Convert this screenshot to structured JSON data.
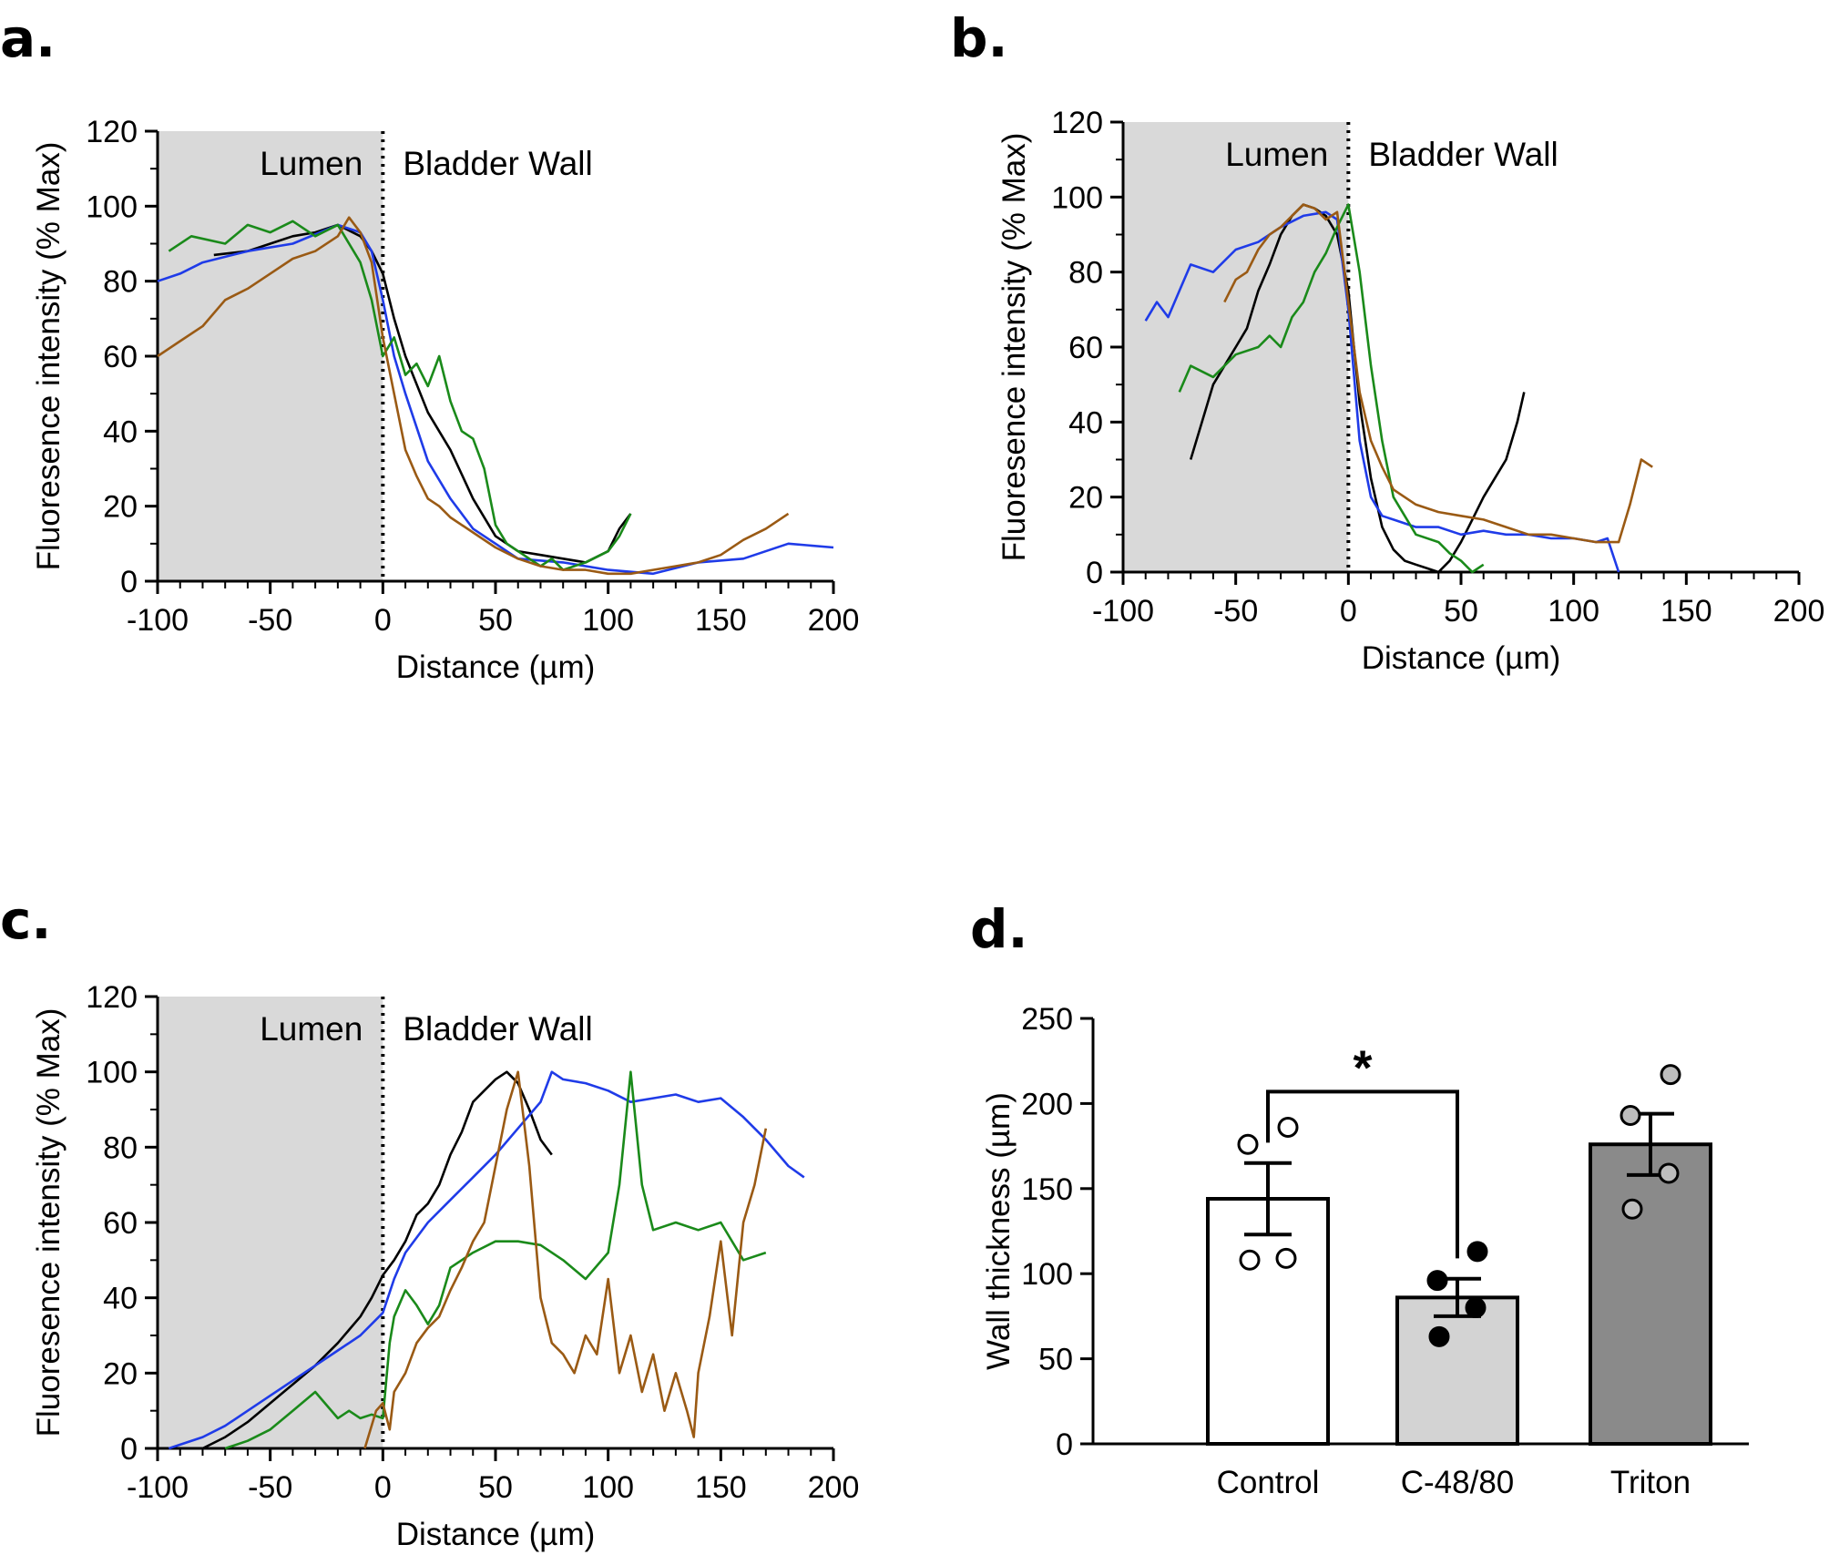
{
  "figure": {
    "colors": {
      "black": "#000000",
      "blue": "#1f3be8",
      "green": "#1a8a1a",
      "brown": "#9a5a14",
      "shade": "#d9d9d9",
      "white_bar": "#ffffff",
      "light_bar": "#d3d3d3",
      "dark_bar": "#8a8a8a"
    }
  },
  "chart_data": [
    {
      "id": "a",
      "panel_label": "a.",
      "type": "line",
      "xlabel": "Distance (µm)",
      "ylabel": "Fluoresence intensity (% Max)",
      "xlim": [
        -100,
        200
      ],
      "ylim": [
        0,
        120
      ],
      "xticks": [
        "-100",
        "-50",
        "0",
        "50",
        "100",
        "150",
        "200"
      ],
      "yticks": [
        "0",
        "20",
        "40",
        "60",
        "80",
        "100",
        "120"
      ],
      "region_left": "Lumen",
      "region_right": "Bladder Wall",
      "shade_range": [
        -100,
        0
      ],
      "series": [
        {
          "name": "black",
          "color": "#000000",
          "x": [
            -75,
            -60,
            -50,
            -40,
            -30,
            -20,
            -10,
            -5,
            0,
            5,
            10,
            20,
            30,
            40,
            50,
            60,
            70,
            80,
            90,
            100,
            105,
            110
          ],
          "y": [
            87,
            88,
            90,
            92,
            93,
            95,
            92,
            88,
            82,
            70,
            60,
            45,
            35,
            22,
            12,
            8,
            7,
            6,
            5,
            8,
            14,
            18
          ]
        },
        {
          "name": "blue",
          "color": "#1f3be8",
          "x": [
            -100,
            -90,
            -80,
            -60,
            -40,
            -20,
            -10,
            -5,
            0,
            5,
            10,
            20,
            30,
            40,
            50,
            60,
            80,
            100,
            120,
            140,
            160,
            180,
            200
          ],
          "y": [
            80,
            82,
            85,
            88,
            90,
            95,
            93,
            88,
            75,
            60,
            50,
            32,
            22,
            14,
            10,
            6,
            5,
            3,
            2,
            5,
            6,
            10,
            9
          ]
        },
        {
          "name": "green",
          "color": "#1a8a1a",
          "x": [
            -95,
            -85,
            -70,
            -60,
            -50,
            -40,
            -30,
            -20,
            -10,
            -5,
            0,
            5,
            10,
            15,
            20,
            25,
            30,
            35,
            40,
            45,
            50,
            55,
            60,
            65,
            70,
            75,
            80,
            90,
            100,
            105,
            110
          ],
          "y": [
            88,
            92,
            90,
            95,
            93,
            96,
            92,
            95,
            85,
            75,
            60,
            65,
            55,
            58,
            52,
            60,
            48,
            40,
            38,
            30,
            15,
            10,
            8,
            6,
            4,
            6,
            3,
            5,
            8,
            12,
            18
          ]
        },
        {
          "name": "brown",
          "color": "#9a5a14",
          "x": [
            -100,
            -90,
            -80,
            -70,
            -60,
            -50,
            -40,
            -30,
            -20,
            -15,
            -10,
            -5,
            0,
            5,
            10,
            15,
            20,
            25,
            30,
            40,
            50,
            60,
            70,
            80,
            90,
            100,
            110,
            120,
            130,
            140,
            150,
            160,
            170,
            180
          ],
          "y": [
            60,
            64,
            68,
            75,
            78,
            82,
            86,
            88,
            92,
            97,
            93,
            85,
            65,
            50,
            35,
            28,
            22,
            20,
            17,
            13,
            9,
            6,
            4,
            3,
            3,
            2,
            2,
            3,
            4,
            5,
            7,
            11,
            14,
            18
          ]
        }
      ]
    },
    {
      "id": "b",
      "panel_label": "b.",
      "type": "line",
      "xlabel": "Distance (µm)",
      "ylabel": "Fluoresence intensity (% Max)",
      "xlim": [
        -100,
        200
      ],
      "ylim": [
        0,
        120
      ],
      "xticks": [
        "-100",
        "-50",
        "0",
        "50",
        "100",
        "150",
        "200"
      ],
      "yticks": [
        "0",
        "20",
        "40",
        "60",
        "80",
        "100",
        "120"
      ],
      "region_left": "Lumen",
      "region_right": "Bladder Wall",
      "shade_range": [
        -100,
        0
      ],
      "series": [
        {
          "name": "black",
          "color": "#000000",
          "x": [
            -70,
            -65,
            -60,
            -55,
            -50,
            -45,
            -40,
            -35,
            -30,
            -25,
            -20,
            -15,
            -10,
            -5,
            0,
            5,
            10,
            15,
            20,
            25,
            30,
            35,
            40,
            45,
            50,
            55,
            60,
            65,
            70,
            75,
            78
          ],
          "y": [
            30,
            40,
            50,
            55,
            60,
            65,
            75,
            82,
            90,
            95,
            98,
            97,
            95,
            90,
            75,
            45,
            25,
            12,
            6,
            3,
            2,
            1,
            0,
            3,
            8,
            14,
            20,
            25,
            30,
            40,
            48
          ]
        },
        {
          "name": "blue",
          "color": "#1f3be8",
          "x": [
            -90,
            -85,
            -80,
            -75,
            -70,
            -60,
            -50,
            -40,
            -30,
            -20,
            -10,
            -5,
            0,
            5,
            10,
            15,
            20,
            30,
            40,
            50,
            60,
            70,
            80,
            90,
            100,
            110,
            115,
            120
          ],
          "y": [
            67,
            72,
            68,
            75,
            82,
            80,
            86,
            88,
            92,
            95,
            96,
            94,
            70,
            35,
            20,
            15,
            14,
            12,
            12,
            10,
            11,
            10,
            10,
            9,
            9,
            8,
            9,
            0
          ]
        },
        {
          "name": "green",
          "color": "#1a8a1a",
          "x": [
            -75,
            -70,
            -60,
            -50,
            -40,
            -35,
            -30,
            -25,
            -20,
            -15,
            -10,
            -5,
            0,
            5,
            10,
            15,
            20,
            25,
            30,
            40,
            45,
            50,
            55,
            60
          ],
          "y": [
            48,
            55,
            52,
            58,
            60,
            63,
            60,
            68,
            72,
            80,
            85,
            92,
            98,
            80,
            55,
            35,
            20,
            15,
            10,
            8,
            5,
            3,
            0,
            2
          ]
        },
        {
          "name": "brown",
          "color": "#9a5a14",
          "x": [
            -55,
            -50,
            -45,
            -40,
            -35,
            -30,
            -25,
            -20,
            -15,
            -10,
            -5,
            0,
            5,
            10,
            15,
            20,
            30,
            40,
            50,
            60,
            70,
            80,
            90,
            100,
            110,
            120,
            125,
            130,
            135
          ],
          "y": [
            72,
            78,
            80,
            86,
            90,
            92,
            95,
            98,
            97,
            94,
            96,
            72,
            48,
            35,
            28,
            22,
            18,
            16,
            15,
            14,
            12,
            10,
            10,
            9,
            8,
            8,
            18,
            30,
            28
          ]
        }
      ]
    },
    {
      "id": "c",
      "panel_label": "c.",
      "type": "line",
      "xlabel": "Distance (µm)",
      "ylabel": "Fluoresence intensity (% Max)",
      "xlim": [
        -100,
        200
      ],
      "ylim": [
        0,
        120
      ],
      "xticks": [
        "-100",
        "-50",
        "0",
        "50",
        "100",
        "150",
        "200"
      ],
      "yticks": [
        "0",
        "20",
        "40",
        "60",
        "80",
        "100",
        "120"
      ],
      "region_left": "Lumen",
      "region_right": "Bladder Wall",
      "shade_range": [
        -100,
        0
      ],
      "series": [
        {
          "name": "black",
          "color": "#000000",
          "x": [
            -80,
            -70,
            -60,
            -50,
            -40,
            -30,
            -20,
            -10,
            -5,
            0,
            5,
            10,
            15,
            20,
            25,
            30,
            35,
            40,
            45,
            50,
            55,
            60,
            65,
            70,
            75
          ],
          "y": [
            0,
            3,
            7,
            12,
            17,
            22,
            28,
            35,
            40,
            46,
            50,
            55,
            62,
            65,
            70,
            78,
            84,
            92,
            95,
            98,
            100,
            97,
            90,
            82,
            78
          ]
        },
        {
          "name": "blue",
          "color": "#1f3be8",
          "x": [
            -95,
            -90,
            -80,
            -70,
            -60,
            -50,
            -40,
            -30,
            -20,
            -10,
            -5,
            0,
            5,
            10,
            20,
            30,
            40,
            50,
            60,
            70,
            75,
            80,
            90,
            100,
            110,
            120,
            130,
            140,
            150,
            160,
            170,
            180,
            187
          ],
          "y": [
            0,
            1,
            3,
            6,
            10,
            14,
            18,
            22,
            26,
            30,
            33,
            36,
            45,
            52,
            60,
            66,
            72,
            78,
            85,
            92,
            100,
            98,
            97,
            95,
            92,
            93,
            94,
            92,
            93,
            88,
            82,
            75,
            72
          ]
        },
        {
          "name": "green",
          "color": "#1a8a1a",
          "x": [
            -70,
            -60,
            -50,
            -40,
            -30,
            -20,
            -15,
            -10,
            -5,
            0,
            3,
            5,
            10,
            15,
            20,
            25,
            30,
            40,
            50,
            60,
            70,
            80,
            90,
            100,
            105,
            110,
            115,
            120,
            130,
            140,
            150,
            160,
            170
          ],
          "y": [
            0,
            2,
            5,
            10,
            15,
            8,
            10,
            8,
            9,
            8,
            28,
            35,
            42,
            38,
            33,
            38,
            48,
            52,
            55,
            55,
            54,
            50,
            45,
            52,
            70,
            100,
            70,
            58,
            60,
            58,
            60,
            50,
            52
          ]
        },
        {
          "name": "brown",
          "color": "#9a5a14",
          "x": [
            -8,
            -3,
            0,
            3,
            5,
            10,
            15,
            20,
            25,
            30,
            35,
            40,
            45,
            50,
            55,
            60,
            65,
            70,
            75,
            80,
            85,
            90,
            95,
            100,
            105,
            110,
            115,
            120,
            125,
            130,
            135,
            138,
            140,
            145,
            150,
            155,
            160,
            165,
            170
          ],
          "y": [
            0,
            10,
            12,
            5,
            15,
            20,
            28,
            32,
            35,
            42,
            48,
            55,
            60,
            75,
            90,
            100,
            75,
            40,
            28,
            25,
            20,
            30,
            25,
            45,
            20,
            30,
            15,
            25,
            10,
            20,
            10,
            3,
            20,
            35,
            55,
            30,
            60,
            70,
            85
          ]
        }
      ]
    },
    {
      "id": "d",
      "panel_label": "d.",
      "type": "bar",
      "ylabel": "Wall thickness (µm)",
      "ylim": [
        0,
        250
      ],
      "yticks": [
        "0",
        "50",
        "100",
        "150",
        "200",
        "250"
      ],
      "categories": [
        "Control",
        "C-48/80",
        "Triton"
      ],
      "values": [
        144,
        86,
        176
      ],
      "errors": [
        21,
        11,
        18
      ],
      "bar_colors": [
        "#ffffff",
        "#d3d3d3",
        "#8a8a8a"
      ],
      "points": [
        [
          108,
          109,
          176,
          186
        ],
        [
          63,
          80,
          96,
          113
        ],
        [
          138,
          159,
          193,
          217
        ]
      ],
      "point_colors": [
        "#ffffff",
        "#000000",
        "#bdbdbd"
      ],
      "significance": {
        "from": 0,
        "to": 1,
        "label": "*"
      }
    }
  ]
}
